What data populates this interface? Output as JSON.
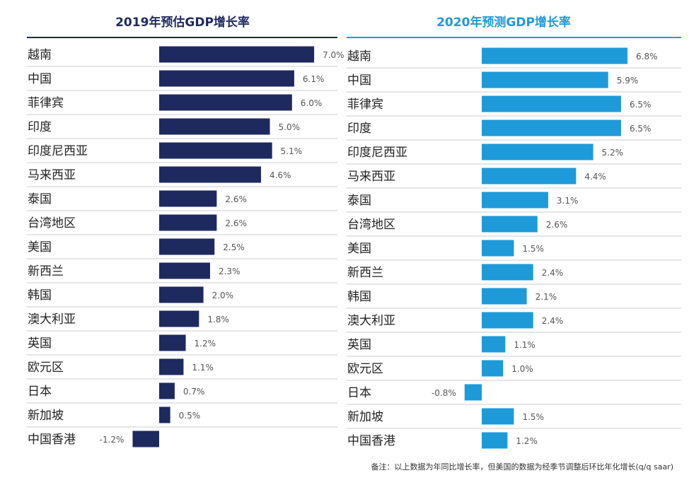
{
  "chart_data": [
    {
      "type": "bar",
      "orientation": "horizontal",
      "title": "2019年预估GDP增长率",
      "color": "#1e2a5e",
      "categories": [
        "越南",
        "中国",
        "菲律宾",
        "印度",
        "印度尼西亚",
        "马来西亚",
        "泰国",
        "台湾地区",
        "美国",
        "新西兰",
        "韩国",
        "澳大利亚",
        "英国",
        "欧元区",
        "日本",
        "新加坡",
        "中国香港"
      ],
      "values": [
        7.0,
        6.1,
        6.0,
        5.0,
        5.1,
        4.6,
        2.6,
        2.6,
        2.5,
        2.3,
        2.0,
        1.8,
        1.2,
        1.1,
        0.7,
        0.5,
        -1.2
      ],
      "labels": [
        "7.0%",
        "6.1%",
        "6.0%",
        "5.0%",
        "5.1%",
        "4.6%",
        "2.6%",
        "2.6%",
        "2.5%",
        "2.3%",
        "2.0%",
        "1.8%",
        "1.2%",
        "1.1%",
        "0.7%",
        "0.5%",
        "-1.2%"
      ]
    },
    {
      "type": "bar",
      "orientation": "horizontal",
      "title": "2020年预测GDP增长率",
      "color": "#1e9ad8",
      "categories": [
        "越南",
        "中国",
        "菲律宾",
        "印度",
        "印度尼西亚",
        "马来西亚",
        "泰国",
        "台湾地区",
        "美国",
        "新西兰",
        "韩国",
        "澳大利亚",
        "英国",
        "欧元区",
        "日本",
        "新加坡",
        "中国香港"
      ],
      "values": [
        6.8,
        5.9,
        6.5,
        6.5,
        5.2,
        4.4,
        3.1,
        2.6,
        1.5,
        2.4,
        2.1,
        2.4,
        1.1,
        1.0,
        -0.8,
        1.5,
        1.2
      ],
      "labels": [
        "6.8%",
        "5.9%",
        "6.5%",
        "6.5%",
        "5.2%",
        "4.4%",
        "3.1%",
        "2.6%",
        "1.5%",
        "2.4%",
        "2.1%",
        "2.4%",
        "1.1%",
        "1.0%",
        "-0.8%",
        "1.5%",
        "1.2%"
      ]
    }
  ],
  "note": "备注：以上数据为年同比增长率，但美国的数据为经季节调整后环比年化增长(q/q saar)"
}
